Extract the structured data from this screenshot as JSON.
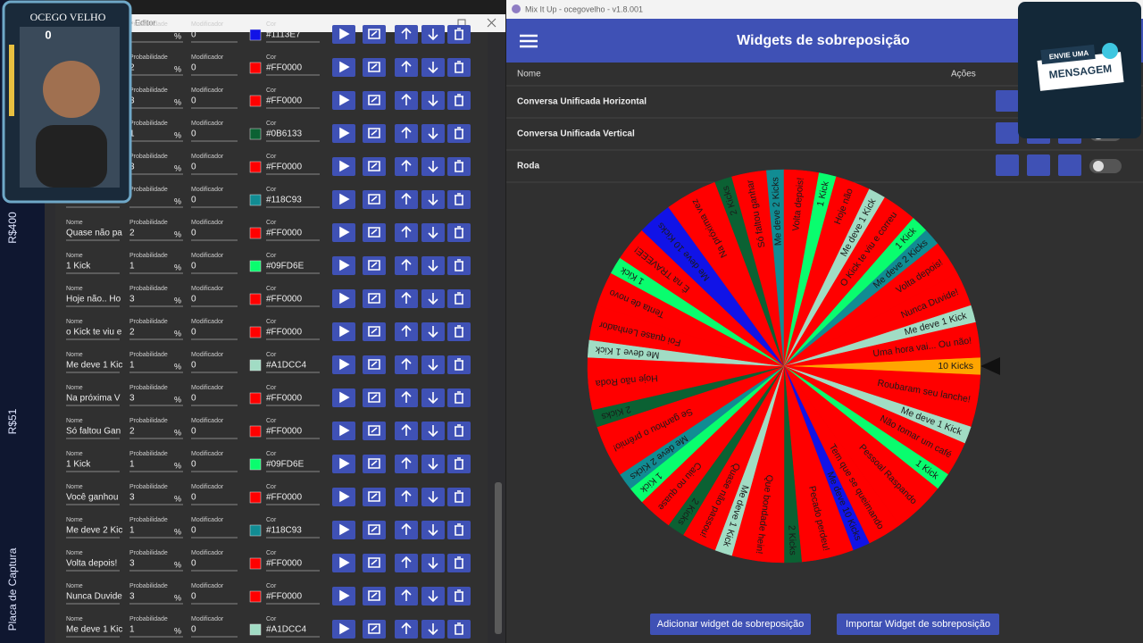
{
  "overlay": {
    "streamer_name": "OCEGO VELHO",
    "counter": "0",
    "side_labels": [
      "R$400",
      "R$51",
      "Placa de Captura"
    ],
    "message_badge": [
      "ENVIE UMA",
      "MENSAGEM"
    ]
  },
  "editor": {
    "title": "lo - Editor",
    "field_labels": {
      "name": "Nome",
      "probability": "Probabilidade",
      "modifier": "Modificador",
      "color": "Cor"
    },
    "percent": "%",
    "rows": [
      {
        "modifier": 0,
        "color": "#1113E7"
      },
      {
        "probability": 2,
        "modifier": 0,
        "color": "#FF0000"
      },
      {
        "probability": 3,
        "modifier": 0,
        "color": "#FF0000"
      },
      {
        "probability": 1,
        "modifier": 0,
        "color": "#0B6133"
      },
      {
        "probability": 3,
        "modifier": 0,
        "color": "#FF0000"
      },
      {
        "modifier": 0,
        "color": "#118C93"
      },
      {
        "name": "Quase não pa",
        "probability": 2,
        "modifier": 0,
        "color": "#FF0000"
      },
      {
        "name": "1 Kick",
        "probability": 1,
        "modifier": 0,
        "color": "#09FD6E"
      },
      {
        "name": "Hoje não.. Ho",
        "probability": 3,
        "modifier": 0,
        "color": "#FF0000"
      },
      {
        "name": "o Kick te viu e",
        "probability": 2,
        "modifier": 0,
        "color": "#FF0000"
      },
      {
        "name": "Me deve 1 Kic",
        "probability": 1,
        "modifier": 0,
        "color": "#A1DCC4"
      },
      {
        "name": "Na próxima V",
        "probability": 3,
        "modifier": 0,
        "color": "#FF0000"
      },
      {
        "name": "Só faltou Gan",
        "probability": 2,
        "modifier": 0,
        "color": "#FF0000"
      },
      {
        "name": "1 Kick",
        "probability": 1,
        "modifier": 0,
        "color": "#09FD6E"
      },
      {
        "name": "Você ganhou",
        "probability": 3,
        "modifier": 0,
        "color": "#FF0000"
      },
      {
        "name": "Me deve 2 Kic",
        "probability": 1,
        "modifier": 0,
        "color": "#118C93"
      },
      {
        "name": "Volta depois!",
        "probability": 3,
        "modifier": 0,
        "color": "#FF0000"
      },
      {
        "name": "Nunca Duvide",
        "probability": 3,
        "modifier": 0,
        "color": "#FF0000"
      },
      {
        "name": "Me deve 1 Kic",
        "probability": 1,
        "modifier": 0,
        "color": "#A1DCC4"
      }
    ]
  },
  "mixitup": {
    "window_title": "Mix It Up - ocegovelho - v1.8.001",
    "header": "Widgets de sobreposição",
    "columns": [
      "Nome",
      "Ações"
    ],
    "widgets": [
      "Conversa Unificada Horizontal",
      "Conversa Unificada Vertical",
      "Roda"
    ],
    "buttons": [
      "Adicionar widget de sobreposição",
      "Importar Widget de sobreposição"
    ]
  },
  "wheel": {
    "segments": [
      {
        "label": "10 Kicks",
        "color": "#FFA500",
        "weight": 1
      },
      {
        "label": "Roubaram seu lanche!",
        "color": "#FF0000",
        "weight": 3
      },
      {
        "label": "Me deve 1 Kick",
        "color": "#A1DCC4",
        "weight": 1
      },
      {
        "label": "Não tomar um café",
        "color": "#FF0000",
        "weight": 2
      },
      {
        "label": "1 Kick",
        "color": "#09FD6E",
        "weight": 1
      },
      {
        "label": "Pessoal Raspando",
        "color": "#FF0000",
        "weight": 3
      },
      {
        "label": "Tem que se queimando",
        "color": "#FF0000",
        "weight": 2
      },
      {
        "label": "Me deve 10 Kicks",
        "color": "#1113E7",
        "weight": 1
      },
      {
        "label": "Pecado perdeu!",
        "color": "#FF0000",
        "weight": 3
      },
      {
        "label": "2 Kicks",
        "color": "#0B6133",
        "weight": 1
      },
      {
        "label": "Que bondade hein!",
        "color": "#FF0000",
        "weight": 3
      },
      {
        "label": "Me deve 1 Kick",
        "color": "#A1DCC4",
        "weight": 1
      },
      {
        "label": "Quase não passou!",
        "color": "#FF0000",
        "weight": 2
      },
      {
        "label": "2 Kicks",
        "color": "#0B6133",
        "weight": 1
      },
      {
        "label": "Caiu no quase",
        "color": "#FF0000",
        "weight": 2
      },
      {
        "label": "1 Kick",
        "color": "#09FD6E",
        "weight": 1
      },
      {
        "label": "Me deve 2 Kicks",
        "color": "#118C93",
        "weight": 1
      },
      {
        "label": "Se ganhou o prêmio!",
        "color": "#FF0000",
        "weight": 3
      },
      {
        "label": "2 Kicks",
        "color": "#0B6133",
        "weight": 1
      },
      {
        "label": "Hoje não Roda",
        "color": "#FF0000",
        "weight": 3
      },
      {
        "label": "Me deve 1 Kick",
        "color": "#A1DCC4",
        "weight": 1
      },
      {
        "label": "Foi quase Lenhador",
        "color": "#FF0000",
        "weight": 2
      },
      {
        "label": "Tenta de novo",
        "color": "#FF0000",
        "weight": 2
      },
      {
        "label": "1 Kick",
        "color": "#09FD6E",
        "weight": 1
      },
      {
        "label": "É na TRAVEEE!",
        "color": "#FF0000",
        "weight": 2
      },
      {
        "label": "Me deve 10 Kicks",
        "color": "#1113E7",
        "weight": 2
      },
      {
        "label": "Na próxima vez",
        "color": "#FF0000",
        "weight": 3
      },
      {
        "label": "2 Kicks",
        "color": "#0B6133",
        "weight": 1
      },
      {
        "label": "Só faltou ganhar",
        "color": "#FF0000",
        "weight": 2
      },
      {
        "label": "Me deve 2 Kicks",
        "color": "#118C93",
        "weight": 1
      },
      {
        "label": "Volta depois!",
        "color": "#FF0000",
        "weight": 2
      },
      {
        "label": "1 Kick",
        "color": "#09FD6E",
        "weight": 1
      },
      {
        "label": "Hoje não",
        "color": "#FF0000",
        "weight": 2
      },
      {
        "label": "Me deve 1 Kick",
        "color": "#A1DCC4",
        "weight": 1
      },
      {
        "label": "O Kick te viu e correu",
        "color": "#FF0000",
        "weight": 2
      },
      {
        "label": "1 Kick",
        "color": "#09FD6E",
        "weight": 1
      },
      {
        "label": "Me deve 2 Kicks",
        "color": "#118C93",
        "weight": 1
      },
      {
        "label": "Volta depois!",
        "color": "#FF0000",
        "weight": 2
      },
      {
        "label": "Nunca Duvide!",
        "color": "#FF0000",
        "weight": 2
      },
      {
        "label": "Me deve 1 Kick",
        "color": "#A1DCC4",
        "weight": 1
      },
      {
        "label": "Uma hora vai... Ou não!",
        "color": "#FF0000",
        "weight": 2
      }
    ]
  }
}
